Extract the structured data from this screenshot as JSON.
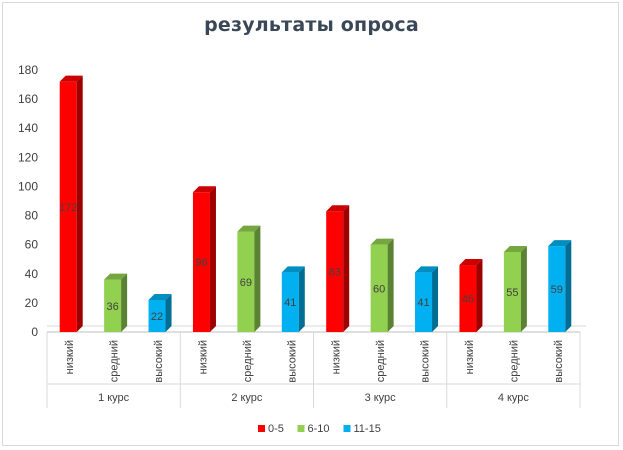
{
  "chart_data": {
    "type": "bar",
    "title": "результаты опроса",
    "groups": [
      "1 курс",
      "2 курс",
      "3 курс",
      "4 курс"
    ],
    "sublevels": [
      "низкий",
      "средний",
      "высокий"
    ],
    "ylim": [
      0,
      180
    ],
    "yticks": [
      0,
      20,
      40,
      60,
      80,
      100,
      120,
      140,
      160,
      180
    ],
    "grid": false,
    "legend_position": "bottom",
    "series": [
      {
        "name": "0-5",
        "color": "#ff0000",
        "sublevel": 0,
        "values": [
          172,
          96,
          83,
          46
        ]
      },
      {
        "name": "6-10",
        "color": "#92d050",
        "sublevel": 1,
        "values": [
          36,
          69,
          60,
          55
        ]
      },
      {
        "name": "11-15",
        "color": "#00b0f0",
        "sublevel": 2,
        "values": [
          22,
          41,
          41,
          59
        ]
      }
    ]
  }
}
